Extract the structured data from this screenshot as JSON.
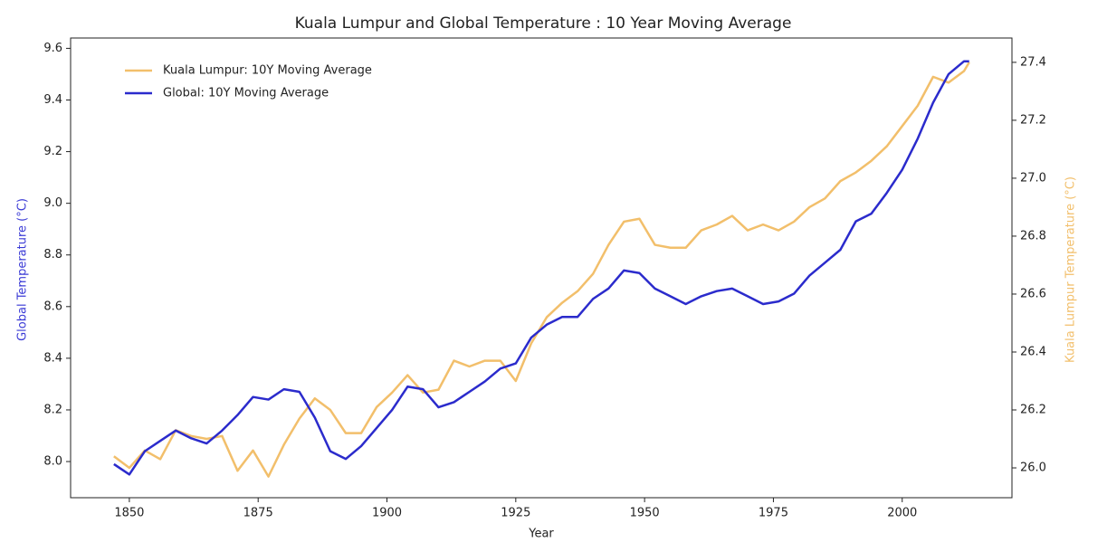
{
  "chart_data": {
    "type": "line",
    "title": "Kuala Lumpur and Global Temperature : 10 Year Moving Average",
    "x_label": "Year",
    "y_label": "Global Temperature (°C)",
    "y2_label": "Kuala Lumpur Temperature (°C)",
    "y_label_color": "#3b3bd6",
    "y2_label_color": "#f2bf6b",
    "legend": "upper left",
    "x": [
      1847,
      1850,
      1853,
      1856,
      1859,
      1862,
      1865,
      1868,
      1871,
      1874,
      1877,
      1880,
      1883,
      1886,
      1889,
      1892,
      1895,
      1898,
      1901,
      1904,
      1907,
      1910,
      1913,
      1916,
      1919,
      1922,
      1925,
      1928,
      1931,
      1934,
      1937,
      1940,
      1943,
      1946,
      1949,
      1952,
      1955,
      1958,
      1961,
      1964,
      1967,
      1970,
      1973,
      1976,
      1979,
      1982,
      1985,
      1988,
      1991,
      1994,
      1997,
      2000,
      2003,
      2006,
      2009,
      2012,
      2013
    ],
    "series": [
      {
        "name": "Kuala Lumpur: 10Y Moving Average",
        "color": "#f2bf6b",
        "axis": "y2",
        "values": [
          26.04,
          26.0,
          26.06,
          26.03,
          26.13,
          26.11,
          26.1,
          26.11,
          25.99,
          26.06,
          25.97,
          26.08,
          26.17,
          26.24,
          26.2,
          26.12,
          26.12,
          26.21,
          26.26,
          26.32,
          26.26,
          26.27,
          26.37,
          26.35,
          26.37,
          26.37,
          26.3,
          26.43,
          26.52,
          26.57,
          26.61,
          26.67,
          26.77,
          26.85,
          26.86,
          26.77,
          26.76,
          26.76,
          26.82,
          26.84,
          26.87,
          26.82,
          26.84,
          26.82,
          26.85,
          26.9,
          26.93,
          26.99,
          27.02,
          27.06,
          27.11,
          27.18,
          27.25,
          27.35,
          27.33,
          27.37,
          27.4
        ]
      },
      {
        "name": "Global: 10Y Moving Average",
        "color": "#2b2bcc",
        "values": [
          7.99,
          7.95,
          8.04,
          8.08,
          8.12,
          8.09,
          8.07,
          8.12,
          8.18,
          8.25,
          8.24,
          8.28,
          8.27,
          8.17,
          8.04,
          8.01,
          8.06,
          8.13,
          8.2,
          8.29,
          8.28,
          8.21,
          8.23,
          8.27,
          8.31,
          8.36,
          8.38,
          8.48,
          8.53,
          8.56,
          8.56,
          8.63,
          8.67,
          8.74,
          8.73,
          8.67,
          8.64,
          8.61,
          8.64,
          8.66,
          8.67,
          8.64,
          8.61,
          8.62,
          8.65,
          8.72,
          8.77,
          8.82,
          8.93,
          8.96,
          9.04,
          9.13,
          9.25,
          9.39,
          9.5,
          9.55,
          9.55
        ]
      }
    ],
    "xlim": [
      1838.6,
      2021.3
    ],
    "xticks": [
      1850,
      1875,
      1900,
      1925,
      1950,
      1975,
      2000
    ],
    "ylim": [
      7.86,
      9.64
    ],
    "yticks": [
      {
        "value": 8,
        "label": "8.0"
      },
      8.2,
      8.4,
      8.6,
      8.8,
      {
        "value": 9,
        "label": "9.0"
      },
      9.2,
      9.4,
      9.6
    ],
    "y2lim": [
      25.897,
      27.484
    ],
    "y2ticks": [
      {
        "value": 26,
        "label": "26.0"
      },
      26.2,
      26.4,
      26.6,
      26.8,
      {
        "value": 27,
        "label": "27.0"
      },
      27.2,
      27.4
    ]
  }
}
